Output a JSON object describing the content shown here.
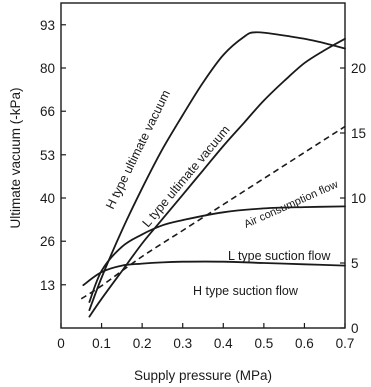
{
  "chart_data": {
    "type": "line",
    "xlabel": "Supply pressure (MPa)",
    "ylabel": "Ultimate vacuum (-kPa)",
    "xlim": [
      0,
      0.7
    ],
    "ylim": [
      0,
      100
    ],
    "y2lim": [
      0,
      25
    ],
    "x_ticks": [
      "0",
      "0.1",
      "0.2",
      "0.3",
      "0.4",
      "0.5",
      "0.6",
      "0.7"
    ],
    "x_tick_values": [
      0,
      0.1,
      0.2,
      0.3,
      0.4,
      0.5,
      0.6,
      0.7
    ],
    "y_ticks": [
      "13",
      "26",
      "40",
      "53",
      "66",
      "80",
      "93"
    ],
    "y_tick_values": [
      13.3,
      26.7,
      40,
      53.3,
      66.7,
      80,
      93.3
    ],
    "y2_ticks": [
      "0",
      "5",
      "10",
      "15",
      "20"
    ],
    "y2_tick_values": [
      0,
      5,
      10,
      15,
      20
    ],
    "grid": false,
    "series": [
      {
        "name": "H type ultimate vacuum",
        "axis": "left",
        "style": "solid",
        "x": [
          0.07,
          0.1,
          0.15,
          0.2,
          0.25,
          0.3,
          0.35,
          0.4,
          0.45,
          0.48,
          0.55,
          0.62,
          0.7
        ],
        "y": [
          5.5,
          15.5,
          30,
          43,
          55,
          65.5,
          75.5,
          84,
          89.5,
          91,
          90,
          88.5,
          86
        ]
      },
      {
        "name": "L type ultimate vacuum",
        "axis": "left",
        "style": "solid",
        "x": [
          0.07,
          0.1,
          0.15,
          0.2,
          0.25,
          0.3,
          0.35,
          0.4,
          0.45,
          0.5,
          0.55,
          0.6,
          0.65,
          0.7
        ],
        "y": [
          3.5,
          9,
          17.5,
          26,
          33.5,
          41,
          48.5,
          56,
          63,
          70,
          76,
          81.5,
          85.5,
          89
        ]
      },
      {
        "name": "Air consumption flow",
        "axis": "right",
        "style": "dashed",
        "x": [
          0.05,
          0.1,
          0.2,
          0.3,
          0.4,
          0.5,
          0.6,
          0.7
        ],
        "y": [
          2.25,
          3.25,
          5.5,
          7.5,
          9.5,
          11.5,
          13.5,
          15.5
        ]
      },
      {
        "name": "L type suction flow",
        "axis": "right",
        "style": "solid",
        "x": [
          0.07,
          0.1,
          0.15,
          0.2,
          0.25,
          0.3,
          0.4,
          0.5,
          0.6,
          0.7
        ],
        "y": [
          2,
          4.4,
          6.25,
          7.2,
          7.9,
          8.3,
          8.9,
          9.2,
          9.3,
          9.35
        ]
      },
      {
        "name": "H type suction flow",
        "axis": "right",
        "style": "solid",
        "x": [
          0.055,
          0.1,
          0.15,
          0.2,
          0.25,
          0.3,
          0.4,
          0.5,
          0.6,
          0.7
        ],
        "y": [
          3.3,
          4.3,
          4.8,
          4.95,
          5.05,
          5.1,
          5.1,
          5.0,
          4.9,
          4.8
        ]
      }
    ]
  }
}
